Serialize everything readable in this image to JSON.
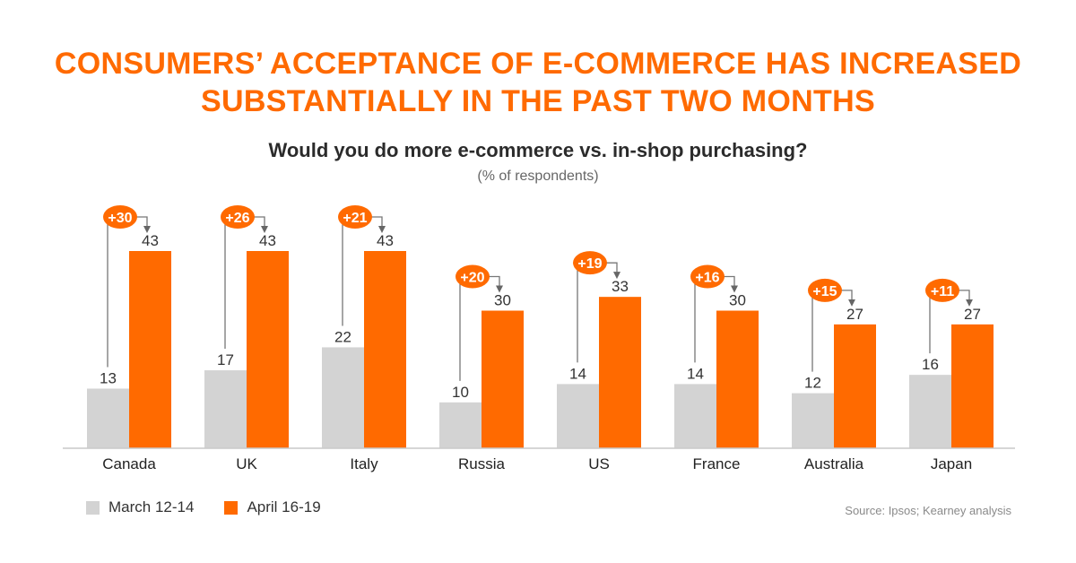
{
  "header": {
    "title_line1": "CONSUMERS’ ACCEPTANCE OF E-COMMERCE HAS INCREASED",
    "title_line2": "SUBSTANTIALLY IN THE PAST TWO MONTHS",
    "subtitle": "Would you do more e-commerce vs. in-shop purchasing?",
    "unit": "(% of respondents)"
  },
  "colors": {
    "march": "#d3d3d3",
    "april": "#ff6a00",
    "text": "#333333",
    "connector": "#777777"
  },
  "chart_data": {
    "type": "bar",
    "categories": [
      "Canada",
      "UK",
      "Italy",
      "Russia",
      "US",
      "France",
      "Australia",
      "Japan"
    ],
    "series": [
      {
        "name": "March 12-14",
        "values": [
          13,
          17,
          22,
          10,
          14,
          14,
          12,
          16
        ]
      },
      {
        "name": "April 16-19",
        "values": [
          43,
          43,
          43,
          30,
          33,
          30,
          27,
          27
        ]
      }
    ],
    "change_labels": [
      "+30",
      "+26",
      "+21",
      "+20",
      "+19",
      "+16",
      "+15",
      "+11"
    ],
    "ylim": [
      0,
      43
    ],
    "grid": false,
    "legend_position": "bottom-left"
  },
  "legend": {
    "items": [
      {
        "label": "March 12-14"
      },
      {
        "label": "April 16-19"
      }
    ]
  },
  "footer": {
    "source": "Source: Ipsos; Kearney analysis"
  }
}
